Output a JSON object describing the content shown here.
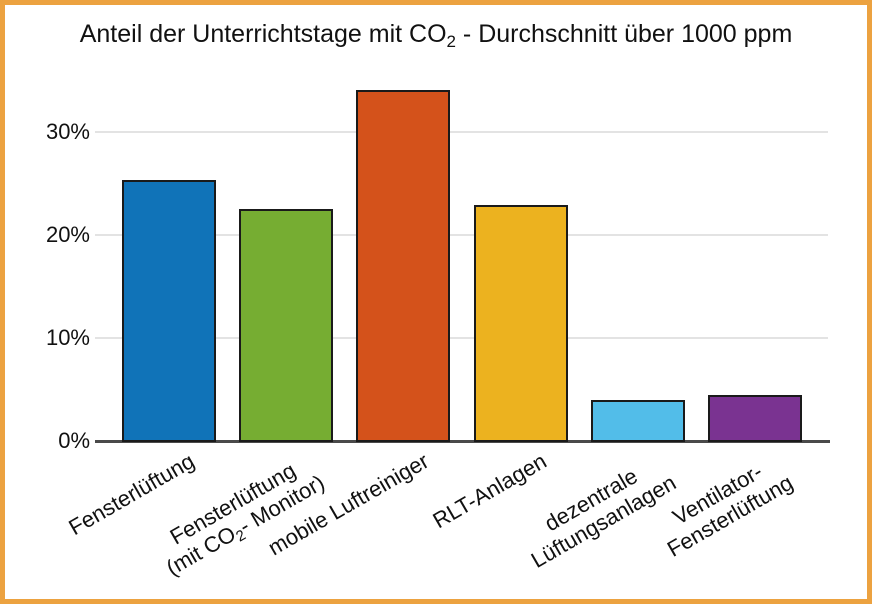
{
  "frame": {
    "border_color": "#eca240",
    "background_color": "#ffffff"
  },
  "chart_data": {
    "type": "bar",
    "title": "Anteil der Unterrichtstage mit CO₂ - Durchschnitt über 1000 ppm",
    "categories": [
      "Fensterlüftung",
      "Fensterlüftung\n(mit CO₂- Monitor)",
      "mobile Luftreiniger",
      "RLT-Anlagen",
      "dezentrale\nLüftungsanlagen",
      "Ventilator-\nFensterlüftung"
    ],
    "values": [
      25.4,
      22.5,
      34.1,
      22.9,
      4.0,
      4.5
    ],
    "unit": "%",
    "bar_colors": [
      "#1073b8",
      "#76ad32",
      "#d4521b",
      "#ecb21f",
      "#52bde9",
      "#7a3391"
    ],
    "bar_edge_color": "#1a1a1a",
    "yticks": [
      0,
      10,
      20,
      30
    ],
    "ytick_labels": [
      "0%",
      "10%",
      "20%",
      "30%"
    ],
    "ylim": [
      0,
      35.5
    ],
    "xlabel": "",
    "ylabel": "",
    "grid": "horizontal-light",
    "grid_color": "#e3e3e3",
    "axis_color": "#4a4a4a",
    "text_color": "#111111",
    "xlabel_rotation_deg": 30
  }
}
